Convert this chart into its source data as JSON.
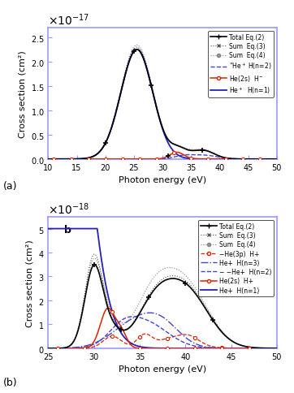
{
  "panel_a": {
    "xlim": [
      10,
      50
    ],
    "ylim": [
      0,
      2.7e-17
    ],
    "yticks": [
      0,
      5e-18,
      1e-17,
      1.5e-17,
      2e-17,
      2.5e-17
    ],
    "xlabel": "Photon energy (eV)",
    "ylabel": "Cross section (cm²)",
    "label_a": "(a)"
  },
  "panel_b": {
    "xlim": [
      25,
      50
    ],
    "ylim": [
      0,
      5.5e-18
    ],
    "yticks": [
      0,
      1e-18,
      2e-18,
      3e-18,
      4e-18,
      5e-18
    ],
    "xlabel": "Photon energy (eV)",
    "ylabel": "Cross section (cm²)",
    "label_b": "(b)",
    "label_b_text": "b"
  },
  "colors": {
    "total": "#000000",
    "sum3": "#555555",
    "sum4": "#888888",
    "blue_dashed": "#4444cc",
    "red": "#dd2200",
    "blue_solid": "#2222bb"
  },
  "border_color": "#9999ff"
}
